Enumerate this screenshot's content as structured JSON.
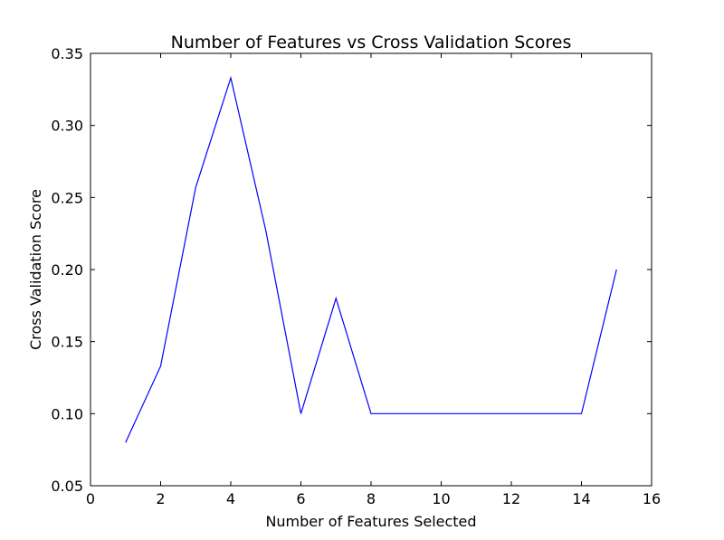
{
  "chart_data": {
    "type": "line",
    "title": "Number of Features vs Cross Validation Scores",
    "xlabel": "Number of Features Selected",
    "ylabel": "Cross Validation Score",
    "xlim": [
      0,
      16
    ],
    "ylim": [
      0.05,
      0.35
    ],
    "xticks": [
      "0",
      "2",
      "4",
      "6",
      "8",
      "10",
      "12",
      "14",
      "16"
    ],
    "yticks": [
      "0.05",
      "0.10",
      "0.15",
      "0.20",
      "0.25",
      "0.30",
      "0.35"
    ],
    "grid": false,
    "series": [
      {
        "color": "#0000ff",
        "x": [
          1,
          2,
          3,
          4,
          5,
          6,
          7,
          8,
          9,
          10,
          11,
          12,
          13,
          14,
          15
        ],
        "y": [
          0.08,
          0.133,
          0.257,
          0.333,
          0.227,
          0.1,
          0.18,
          0.1,
          0.1,
          0.1,
          0.1,
          0.1,
          0.1,
          0.1,
          0.2
        ]
      }
    ]
  }
}
